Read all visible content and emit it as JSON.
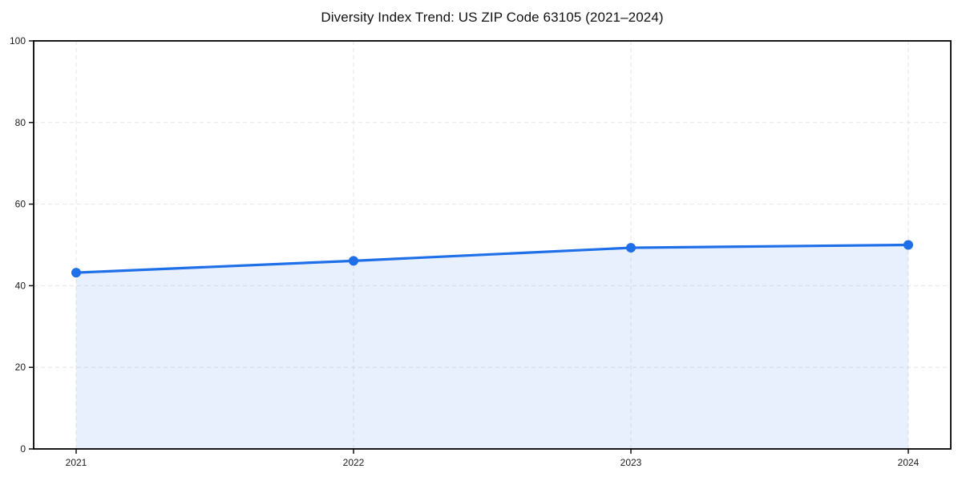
{
  "chart_data": {
    "type": "area",
    "title": "Diversity Index Trend: US ZIP Code 63105 (2021–2024)",
    "x": [
      2021,
      2022,
      2023,
      2024
    ],
    "xtick_labels": [
      "2021",
      "2022",
      "2023",
      "2024"
    ],
    "series": [
      {
        "name": "Diversity Index",
        "values": [
          43.2,
          46.1,
          49.3,
          50.0
        ]
      }
    ],
    "xlabel": "",
    "ylabel": "",
    "ylim": [
      0,
      100
    ],
    "yticks": [
      0,
      20,
      40,
      60,
      80,
      100
    ],
    "grid": "dashed",
    "legend": "none",
    "marker": "circle",
    "line_color": "#1f6fe8",
    "fill_color": "rgba(31, 111, 232, 0.10)",
    "grid_color": "#e6e6e6",
    "spine_color": "#000000",
    "tick_label_color": "#1a1a1a"
  }
}
